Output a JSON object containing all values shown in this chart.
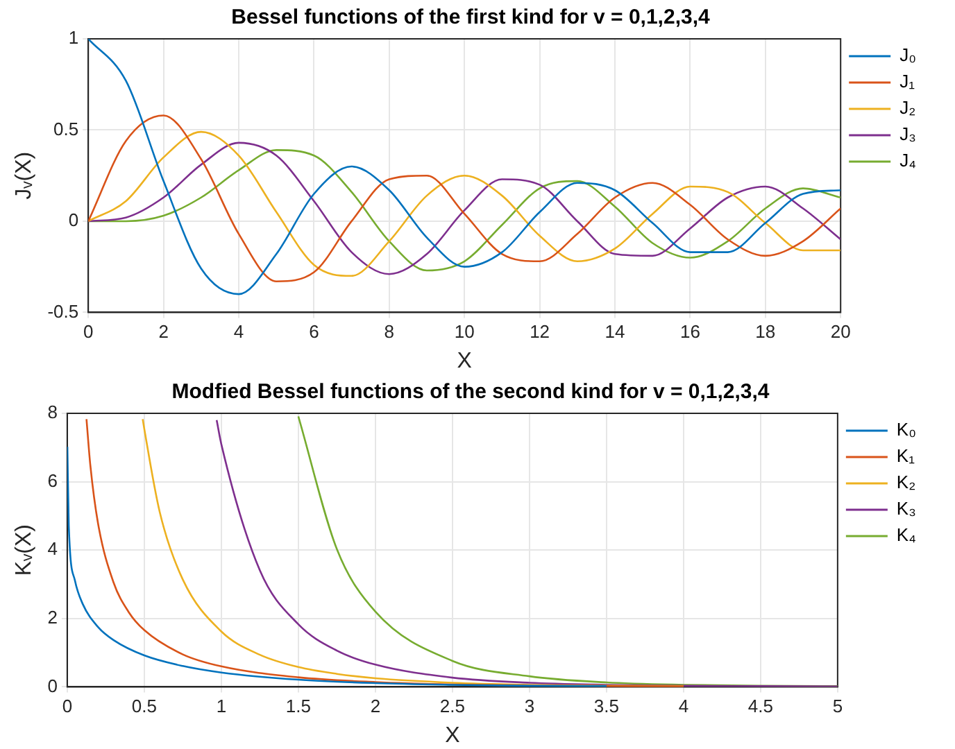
{
  "chart_data": [
    {
      "type": "line",
      "title": "Bessel functions of the first kind for v = 0,1,2,3,4",
      "xlabel": "X",
      "ylabel": "Jᵥ(X)",
      "x": [
        0,
        1,
        2,
        3,
        4,
        5,
        6,
        7,
        8,
        9,
        10,
        11,
        12,
        13,
        14,
        15,
        16,
        17,
        18,
        19,
        20
      ],
      "series": [
        {
          "name": "J₀",
          "color": "#0072bd",
          "values": [
            1,
            0.77,
            0.22,
            -0.26,
            -0.4,
            -0.18,
            0.15,
            0.3,
            0.17,
            -0.09,
            -0.25,
            -0.17,
            0.05,
            0.21,
            0.17,
            -0.01,
            -0.17,
            -0.17,
            -0.01,
            0.15,
            0.17
          ]
        },
        {
          "name": "J₁",
          "color": "#d95319",
          "values": [
            0,
            0.44,
            0.58,
            0.34,
            -0.07,
            -0.33,
            -0.28,
            0,
            0.23,
            0.25,
            0.04,
            -0.18,
            -0.22,
            -0.07,
            0.13,
            0.21,
            0.09,
            -0.1,
            -0.19,
            -0.11,
            0.07
          ]
        },
        {
          "name": "J₂",
          "color": "#edb120",
          "values": [
            0,
            0.11,
            0.35,
            0.49,
            0.36,
            0.05,
            -0.24,
            -0.3,
            -0.11,
            0.14,
            0.25,
            0.14,
            -0.08,
            -0.22,
            -0.15,
            0.04,
            0.19,
            0.16,
            -0.01,
            -0.16,
            -0.16
          ]
        },
        {
          "name": "J₃",
          "color": "#7e2f8e",
          "values": [
            0,
            0.02,
            0.13,
            0.31,
            0.43,
            0.36,
            0.11,
            -0.17,
            -0.29,
            -0.18,
            0.06,
            0.23,
            0.2,
            0,
            -0.18,
            -0.19,
            -0.04,
            0.13,
            0.19,
            0.07,
            -0.1
          ]
        },
        {
          "name": "J₄",
          "color": "#77ac30",
          "values": [
            0,
            0,
            0.03,
            0.13,
            0.28,
            0.39,
            0.36,
            0.16,
            -0.11,
            -0.27,
            -0.22,
            -0.02,
            0.18,
            0.22,
            0.08,
            -0.12,
            -0.2,
            -0.11,
            0.07,
            0.18,
            0.13
          ]
        }
      ],
      "xlim": [
        0,
        20
      ],
      "xticks": [
        0,
        2,
        4,
        6,
        8,
        10,
        12,
        14,
        16,
        18,
        20
      ],
      "ylim": [
        -0.5,
        1
      ],
      "yticks": [
        -0.5,
        0,
        0.5,
        1
      ],
      "grid": true,
      "legend": "right"
    },
    {
      "type": "line",
      "title": "Modfied Bessel functions of the second kind for v = 0,1,2,3,4",
      "xlabel": "X",
      "ylabel": "Kᵥ(X)",
      "series": [
        {
          "name": "K₀",
          "color": "#0072bd",
          "x": [
            0.001,
            0.01,
            0.05,
            0.1,
            0.2,
            0.3,
            0.5,
            0.75,
            1,
            1.5,
            2,
            2.5,
            3,
            3.5
          ],
          "values": [
            7.02,
            4.72,
            3.11,
            2.43,
            1.75,
            1.37,
            0.92,
            0.61,
            0.42,
            0.21,
            0.11,
            0.06,
            0.03,
            0.02
          ]
        },
        {
          "name": "K₁",
          "color": "#d95319",
          "x": [
            0.125,
            0.15,
            0.2,
            0.3,
            0.4,
            0.5,
            0.75,
            1,
            1.5,
            2,
            2.5,
            3,
            3.5,
            4
          ],
          "values": [
            7.83,
            6.48,
            4.78,
            3.06,
            2.18,
            1.66,
            0.95,
            0.6,
            0.28,
            0.14,
            0.07,
            0.04,
            0.02,
            0.01
          ]
        },
        {
          "name": "K₂",
          "color": "#edb120",
          "x": [
            0.49,
            0.5,
            0.6,
            0.75,
            1,
            1.25,
            1.5,
            1.75,
            2,
            2.5,
            3,
            3.5,
            4
          ],
          "values": [
            7.83,
            7.55,
            5.12,
            3.14,
            1.62,
            0.94,
            0.58,
            0.38,
            0.25,
            0.12,
            0.06,
            0.03,
            0.02
          ]
        },
        {
          "name": "K₃",
          "color": "#7e2f8e",
          "x": [
            0.97,
            1,
            1.25,
            1.5,
            1.75,
            2,
            2.5,
            3,
            3.5,
            4,
            4.5,
            5
          ],
          "values": [
            7.8,
            7.1,
            3.41,
            1.83,
            1.06,
            0.65,
            0.27,
            0.12,
            0.06,
            0.03,
            0.02,
            0.01
          ]
        },
        {
          "name": "K₄",
          "color": "#77ac30",
          "x": [
            1.5,
            1.75,
            2,
            2.5,
            3,
            3.5,
            4,
            4.5,
            5
          ],
          "values": [
            7.91,
            4.03,
            2.2,
            0.76,
            0.31,
            0.13,
            0.06,
            0.03,
            0.02
          ]
        }
      ],
      "xlim": [
        0,
        5
      ],
      "xticks": [
        0,
        0.5,
        1,
        1.5,
        2,
        2.5,
        3,
        3.5,
        4,
        4.5,
        5
      ],
      "ylim": [
        0,
        8
      ],
      "yticks": [
        0,
        2,
        4,
        6,
        8
      ],
      "grid": true,
      "legend": "right"
    }
  ]
}
